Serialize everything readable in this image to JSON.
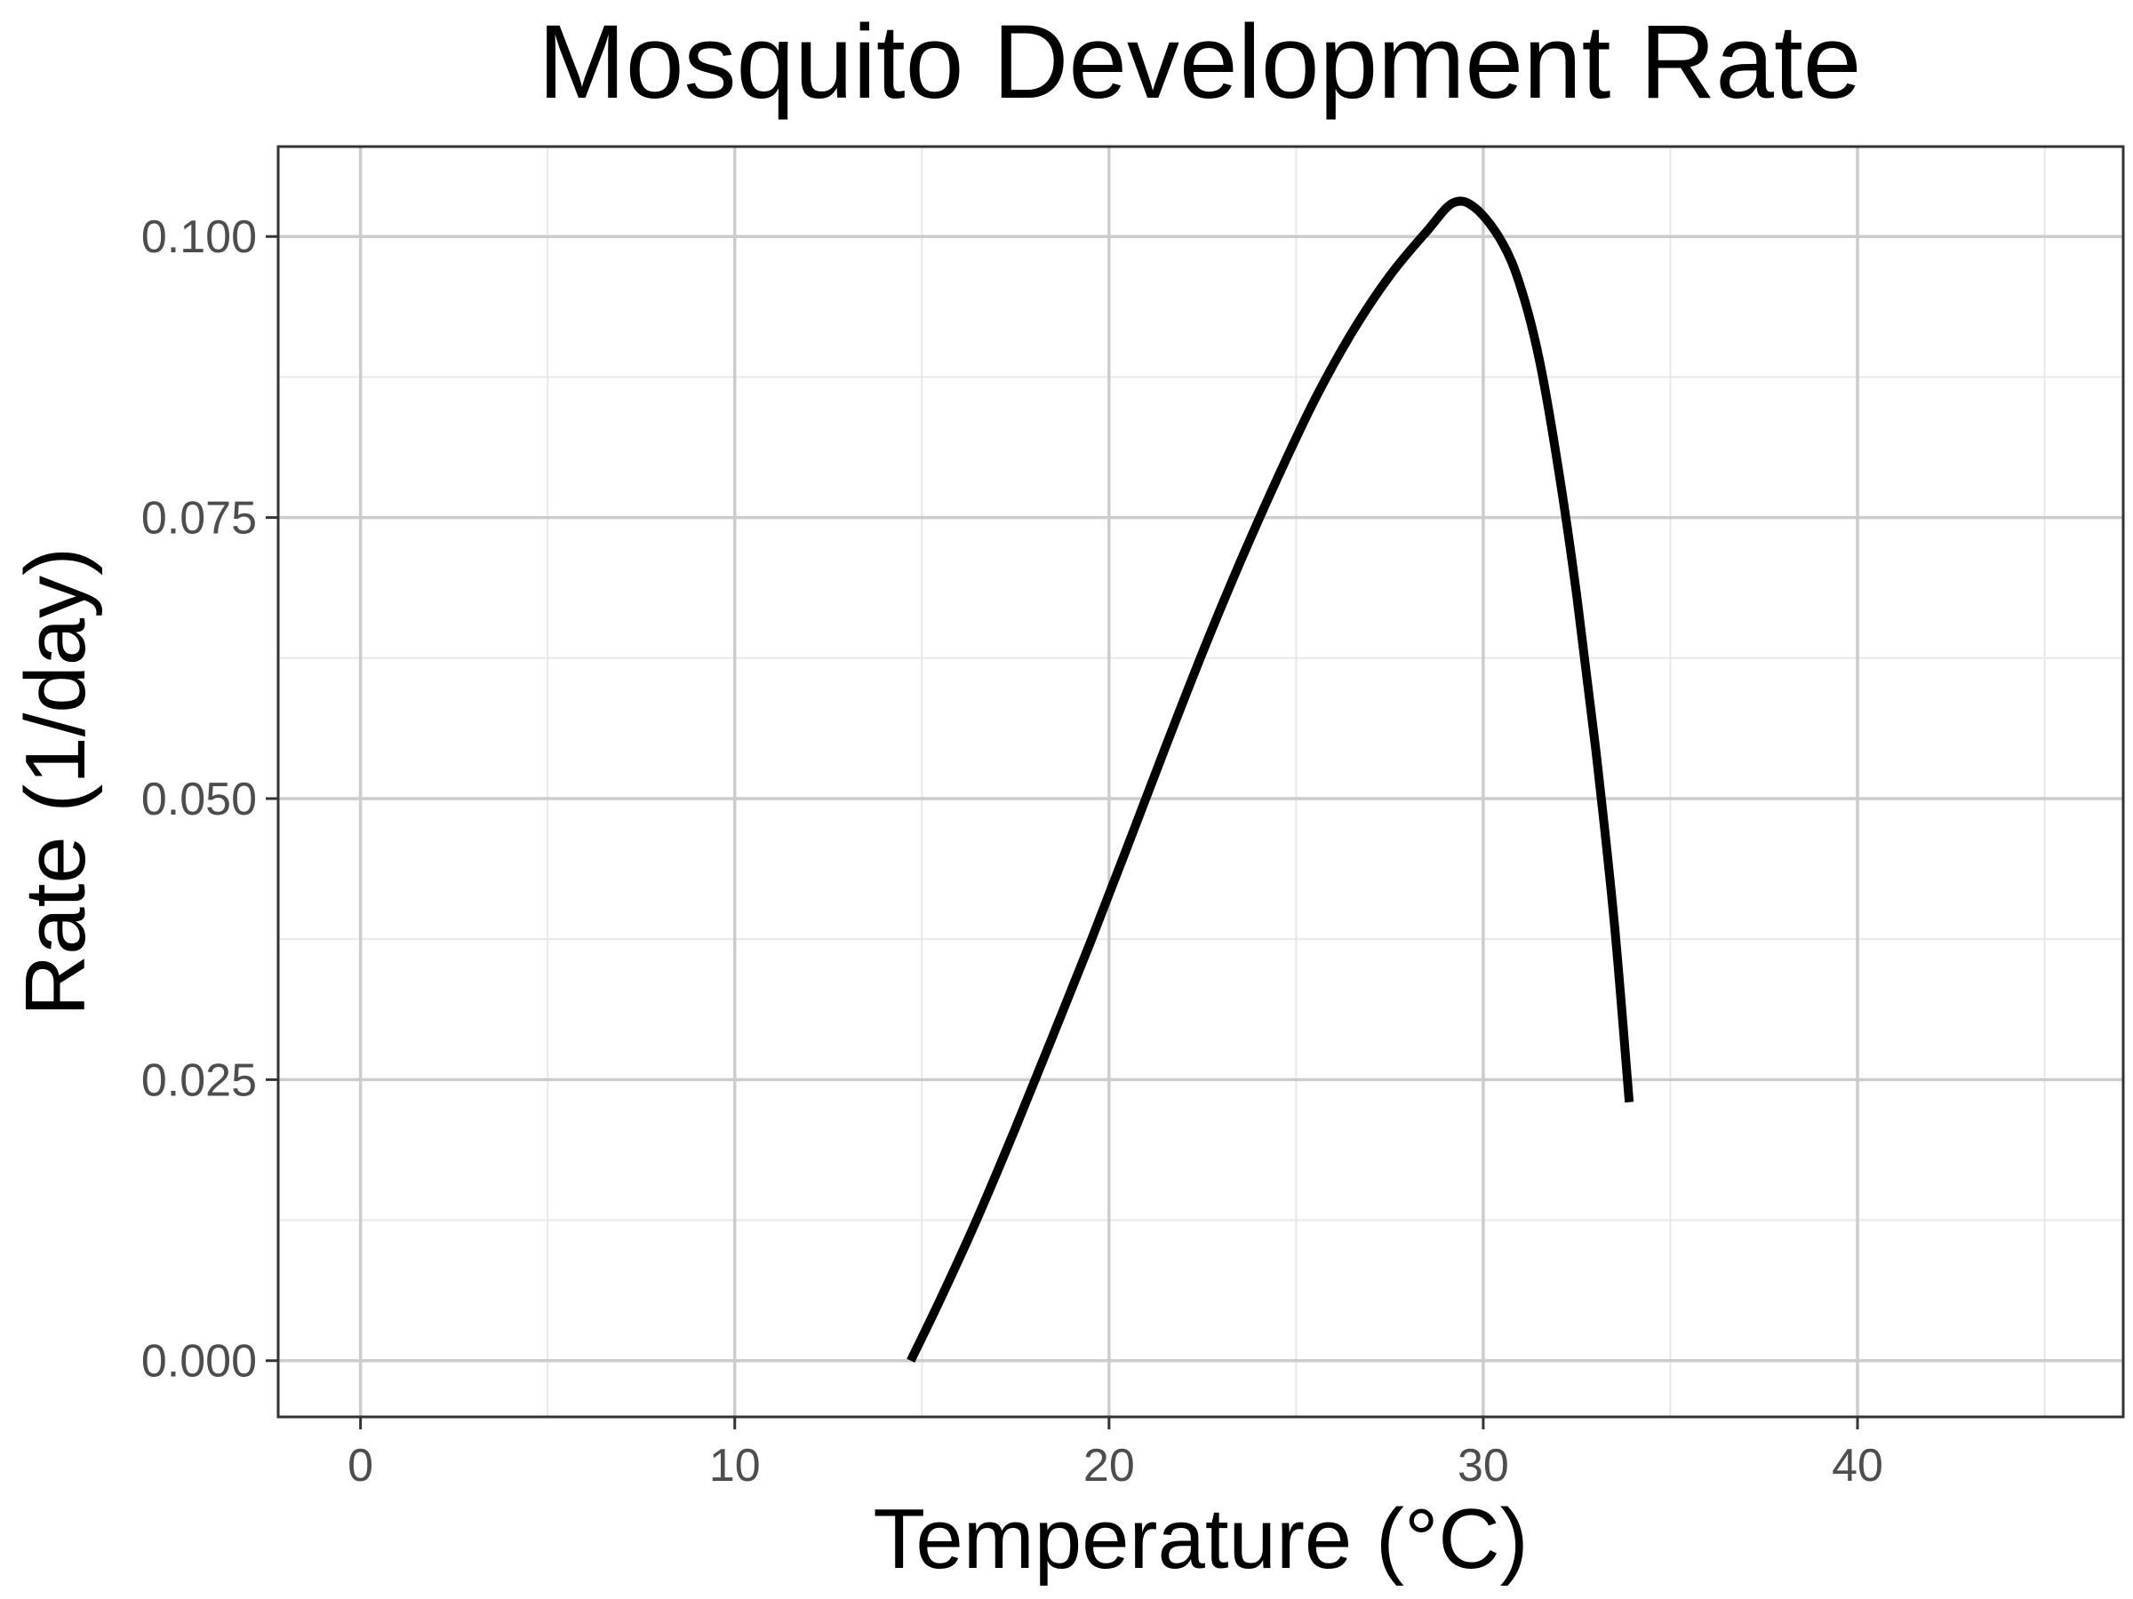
{
  "chart_data": {
    "type": "line",
    "title": "Mosquito Development Rate",
    "xlabel": "Temperature (°C)",
    "ylabel": "Rate (1/day)",
    "xlim": [
      -2.2,
      47.1
    ],
    "ylim": [
      -0.005,
      0.108
    ],
    "xticks": [
      0,
      10,
      20,
      30,
      40
    ],
    "xtick_labels": [
      "0",
      "10",
      "20",
      "30",
      "40"
    ],
    "xminor": [
      5,
      15,
      25,
      35,
      45
    ],
    "yticks": [
      0,
      0.025,
      0.05,
      0.075,
      0.1
    ],
    "ytick_labels": [
      "0.000",
      "0.025",
      "0.050",
      "0.075",
      "0.100"
    ],
    "yminor": [
      0.0125,
      0.0375,
      0.0625,
      0.0875
    ],
    "grid": true,
    "series": [
      {
        "color": "#000000",
        "x": [
          14.7,
          15.5,
          16.5,
          17.5,
          18.5,
          19.5,
          20.5,
          21.5,
          22.5,
          23.5,
          24.5,
          25.5,
          26.5,
          27.5,
          28.5,
          29.2,
          29.8,
          30.5,
          31.0,
          31.5,
          32.0,
          32.5,
          33.0,
          33.5,
          33.9
        ],
        "y": [
          0.0,
          0.0055,
          0.0128,
          0.0207,
          0.0289,
          0.0372,
          0.0458,
          0.0545,
          0.063,
          0.071,
          0.0785,
          0.0855,
          0.0915,
          0.0965,
          0.1005,
          0.103,
          0.1025,
          0.0995,
          0.0955,
          0.089,
          0.0795,
          0.068,
          0.0545,
          0.039,
          0.023
        ]
      }
    ]
  }
}
